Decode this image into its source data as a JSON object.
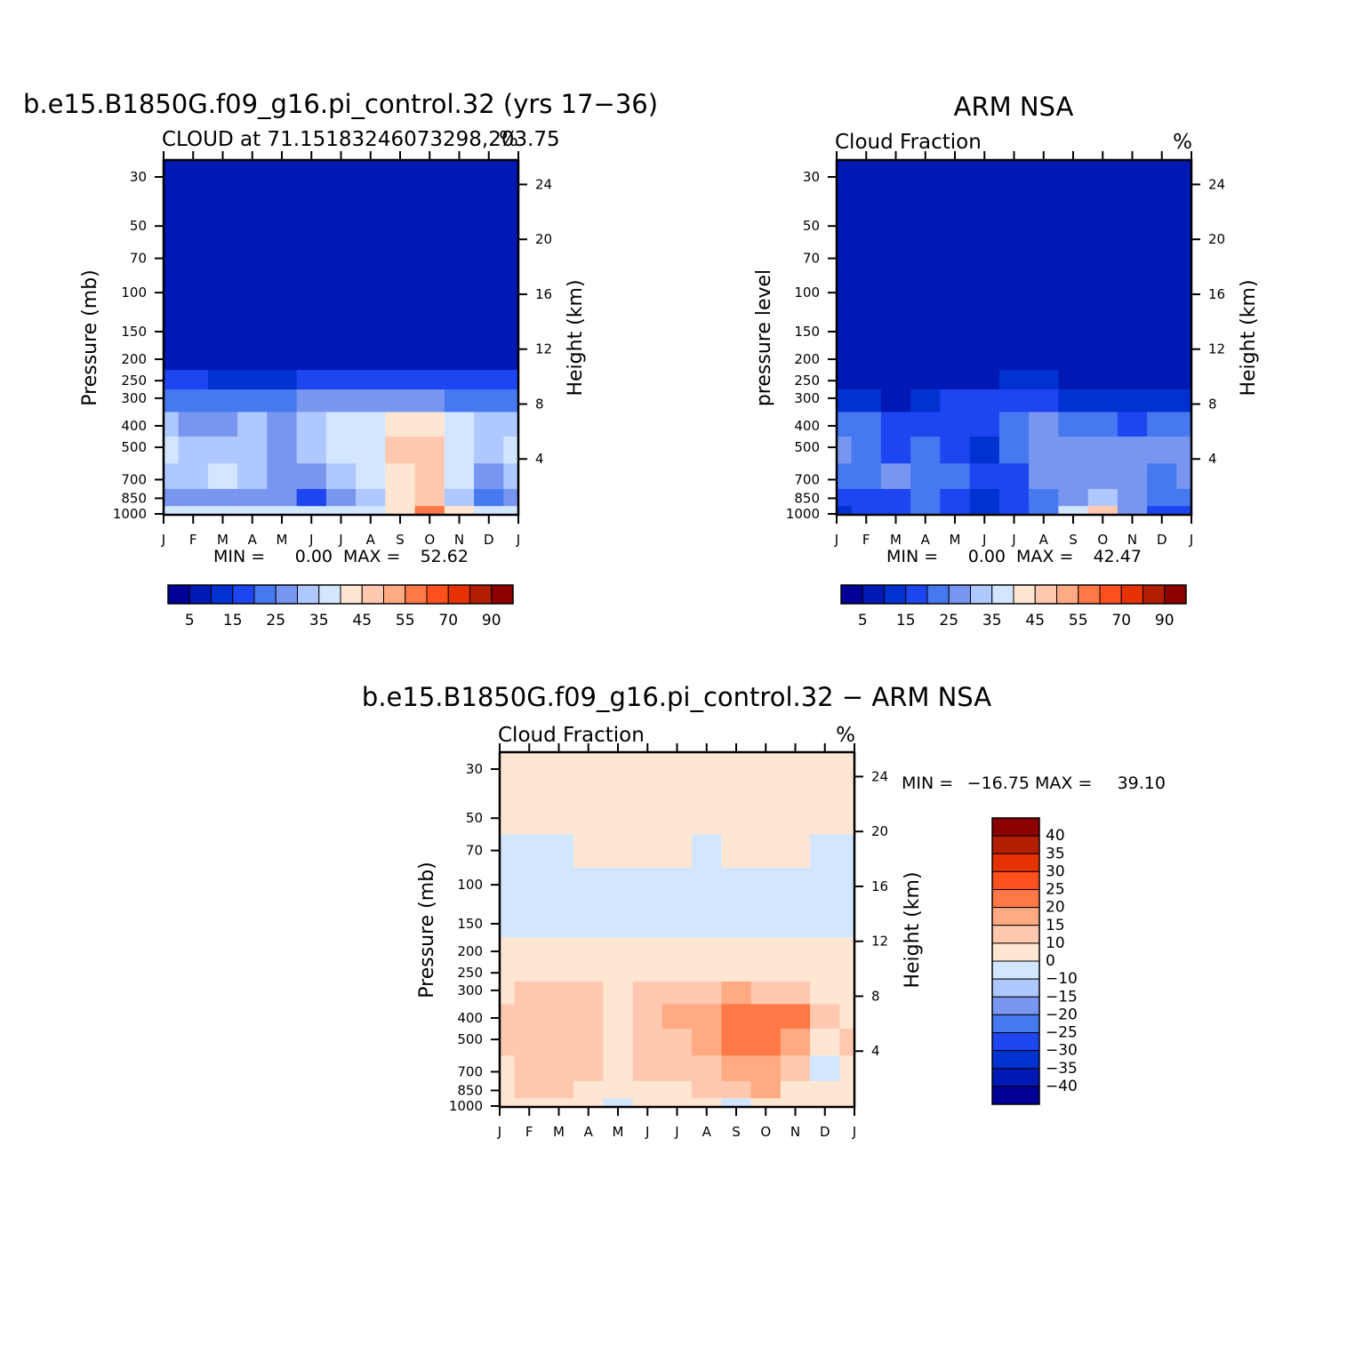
{
  "colors": {
    "cloud_scale": [
      "#000096",
      "#0019b4",
      "#0032d2",
      "#1e46f0",
      "#4678f0",
      "#7896f0",
      "#afc8ff",
      "#d2e6ff",
      "#ffe6d2",
      "#ffc8af",
      "#ffaa82",
      "#ff7846",
      "#ff501e",
      "#e63200",
      "#b41e00",
      "#8c0000"
    ],
    "diff_scale": [
      "#000096",
      "#0019b4",
      "#0032d2",
      "#1e46f0",
      "#4678f0",
      "#7896f0",
      "#afc8ff",
      "#d2e6ff",
      "#ffe6d2",
      "#ffc8af",
      "#ffaa82",
      "#ff7846",
      "#ff501e",
      "#e63200",
      "#b41e00",
      "#8c0000"
    ]
  },
  "panels": {
    "model": {
      "title": "b.e15.B1850G.f09_g16.pi_control.32 (yrs 17−36)",
      "left_string": "CLOUD at 71.15183246073298,203.75",
      "right_string": "%",
      "y_label": "Pressure (mb)",
      "y2_label": "Height (km)",
      "min_label": "MIN =",
      "min_value": "0.00",
      "max_label": "MAX =",
      "max_value": "52.62"
    },
    "obs": {
      "title": "ARM NSA",
      "left_string": "Cloud Fraction",
      "right_string": "%",
      "y_label": "pressure level",
      "y2_label": "Height (km)",
      "min_label": "MIN =",
      "min_value": "0.00",
      "max_label": "MAX =",
      "max_value": "42.47"
    },
    "diff": {
      "title": "b.e15.B1850G.f09_g16.pi_control.32 − ARM NSA",
      "left_string": "Cloud Fraction",
      "right_string": "%",
      "y_label": "Pressure (mb)",
      "y2_label": "Height (km)",
      "min_label": "MIN =",
      "min_value": "−16.75",
      "max_label": "MAX =",
      "max_value": "39.10"
    }
  },
  "colorbars": {
    "cloud_labels": [
      "5",
      "15",
      "25",
      "35",
      "45",
      "55",
      "70",
      "90"
    ],
    "diff_labels": [
      "40",
      "35",
      "30",
      "25",
      "20",
      "15",
      "10",
      "0",
      "−10",
      "−15",
      "−20",
      "−25",
      "−30",
      "−35",
      "−40"
    ]
  },
  "chart_data": [
    {
      "type": "heatmap",
      "name": "model",
      "title": "b.e15.B1850G.f09_g16.pi_control.32 (yrs 17-36)",
      "x_categories": [
        "J",
        "F",
        "M",
        "A",
        "M",
        "J",
        "J",
        "A",
        "S",
        "O",
        "N",
        "D",
        "J"
      ],
      "y_ticks_pressure_mb": [
        "30",
        "50",
        "70",
        "100",
        "150",
        "200",
        "250",
        "300",
        "400",
        "500",
        "700",
        "850",
        "1000"
      ],
      "y2_ticks_height_km": [
        "24",
        "20",
        "16",
        "12",
        "8",
        "4"
      ],
      "pressure_levels": [
        30,
        50,
        70,
        100,
        150,
        200,
        250,
        300,
        400,
        500,
        700,
        850,
        1000
      ],
      "values": [
        [
          0,
          0,
          0,
          0,
          0,
          0,
          0,
          0,
          0,
          0,
          0,
          0,
          0
        ],
        [
          0,
          0,
          0,
          0,
          0,
          0,
          0,
          0,
          0,
          0,
          0,
          0,
          0
        ],
        [
          0,
          0,
          0,
          0,
          0,
          0,
          0,
          0,
          0,
          0,
          0,
          0,
          0
        ],
        [
          0,
          0,
          0,
          0,
          0,
          0,
          0,
          0,
          0,
          0,
          0,
          0,
          0
        ],
        [
          0,
          0,
          0,
          0,
          0,
          0,
          0,
          0,
          0,
          0,
          0,
          0,
          0
        ],
        [
          2,
          2,
          1,
          1,
          1,
          2,
          3,
          3,
          3,
          2,
          2,
          2,
          2
        ],
        [
          10,
          10,
          9,
          8,
          8,
          10,
          12,
          12,
          12,
          11,
          10,
          10,
          10
        ],
        [
          18,
          18,
          17,
          16,
          18,
          20,
          22,
          22,
          22,
          20,
          18,
          17,
          18
        ],
        [
          25,
          24,
          24,
          26,
          20,
          28,
          30,
          32,
          36,
          36,
          30,
          26,
          25
        ],
        [
          30,
          28,
          28,
          28,
          20,
          26,
          30,
          34,
          40,
          42,
          34,
          25,
          30
        ],
        [
          28,
          28,
          30,
          28,
          20,
          22,
          26,
          32,
          38,
          40,
          30,
          20,
          26
        ],
        [
          22,
          24,
          24,
          24,
          22,
          14,
          20,
          26,
          36,
          44,
          28,
          18,
          24
        ],
        [
          30,
          30,
          32,
          32,
          32,
          30,
          34,
          34,
          38,
          50,
          36,
          34,
          32
        ]
      ]
    },
    {
      "type": "heatmap",
      "name": "obs",
      "title": "ARM NSA",
      "x_categories": [
        "J",
        "F",
        "M",
        "A",
        "M",
        "J",
        "J",
        "A",
        "S",
        "O",
        "N",
        "D",
        "J"
      ],
      "y_ticks_pressure_mb": [
        "30",
        "50",
        "70",
        "100",
        "150",
        "200",
        "250",
        "300",
        "400",
        "500",
        "700",
        "850",
        "1000"
      ],
      "y2_ticks_height_km": [
        "24",
        "20",
        "16",
        "12",
        "8",
        "4"
      ],
      "pressure_levels": [
        30,
        50,
        70,
        100,
        150,
        200,
        250,
        300,
        400,
        500,
        700,
        850,
        1000
      ],
      "values": [
        [
          0,
          0,
          0,
          0,
          0,
          0,
          0,
          0,
          0,
          0,
          0,
          0,
          0
        ],
        [
          0,
          0,
          0,
          0,
          0,
          0,
          0,
          0,
          0,
          0,
          0,
          0,
          0
        ],
        [
          0,
          0,
          0,
          0,
          0,
          0,
          0,
          0,
          0,
          0,
          0,
          0,
          0
        ],
        [
          0,
          0,
          0,
          0,
          0,
          0,
          0,
          0,
          0,
          0,
          0,
          0,
          0
        ],
        [
          0,
          0,
          0,
          0,
          0,
          0,
          0,
          0,
          0,
          0,
          0,
          0,
          0
        ],
        [
          0,
          0,
          0,
          0,
          0,
          0,
          0,
          0,
          0,
          0,
          0,
          0,
          0
        ],
        [
          1,
          1,
          1,
          2,
          3,
          4,
          6,
          7,
          3,
          2,
          1,
          1,
          1
        ],
        [
          8,
          6,
          4,
          6,
          10,
          12,
          14,
          14,
          9,
          8,
          8,
          8,
          8
        ],
        [
          18,
          16,
          12,
          14,
          14,
          10,
          18,
          22,
          18,
          16,
          14,
          16,
          18
        ],
        [
          20,
          16,
          14,
          18,
          14,
          8,
          16,
          22,
          20,
          22,
          20,
          22,
          22
        ],
        [
          18,
          16,
          20,
          18,
          16,
          10,
          14,
          20,
          20,
          24,
          22,
          18,
          20
        ],
        [
          14,
          12,
          14,
          16,
          14,
          8,
          12,
          16,
          20,
          26,
          20,
          16,
          16
        ],
        [
          8,
          10,
          12,
          18,
          14,
          8,
          12,
          16,
          30,
          42,
          24,
          14,
          12
        ]
      ]
    },
    {
      "type": "heatmap",
      "name": "diff",
      "title": "b.e15.B1850G.f09_g16.pi_control.32 - ARM NSA",
      "x_categories": [
        "J",
        "F",
        "M",
        "A",
        "M",
        "J",
        "J",
        "A",
        "S",
        "O",
        "N",
        "D",
        "J"
      ],
      "y_ticks_pressure_mb": [
        "30",
        "50",
        "70",
        "100",
        "150",
        "200",
        "250",
        "300",
        "400",
        "500",
        "700",
        "850",
        "1000"
      ],
      "y2_ticks_height_km": [
        "24",
        "20",
        "16",
        "12",
        "8",
        "4"
      ],
      "pressure_levels": [
        30,
        50,
        70,
        100,
        150,
        200,
        250,
        300,
        400,
        500,
        700,
        850,
        1000
      ],
      "values": [
        [
          0,
          0,
          0,
          0,
          0,
          0,
          0,
          0,
          0,
          0,
          0,
          0,
          0
        ],
        [
          0,
          0,
          0,
          0,
          0,
          0,
          0,
          0,
          0,
          0,
          0,
          0,
          0
        ],
        [
          -1,
          -1,
          -1,
          0,
          0,
          0,
          0,
          -1,
          0,
          0,
          0,
          -1,
          -1
        ],
        [
          -1,
          -1,
          -1,
          -1,
          -1,
          -1,
          -1,
          -1,
          -1,
          -1,
          -1,
          -1,
          -1
        ],
        [
          -1,
          -1,
          -1,
          -1,
          -1,
          -1,
          -1,
          -1,
          -1,
          -1,
          -1,
          -1,
          -1
        ],
        [
          2,
          2,
          1,
          1,
          1,
          2,
          3,
          3,
          3,
          2,
          2,
          2,
          2
        ],
        [
          6,
          6,
          5,
          4,
          5,
          6,
          6,
          6,
          8,
          8,
          6,
          6,
          6
        ],
        [
          8,
          10,
          12,
          10,
          8,
          10,
          10,
          14,
          16,
          14,
          10,
          8,
          8
        ],
        [
          10,
          12,
          12,
          12,
          8,
          14,
          16,
          18,
          24,
          24,
          20,
          10,
          8
        ],
        [
          10,
          12,
          14,
          10,
          6,
          12,
          14,
          16,
          22,
          22,
          18,
          6,
          10
        ],
        [
          8,
          12,
          14,
          10,
          4,
          10,
          12,
          12,
          18,
          18,
          10,
          -2,
          8
        ],
        [
          8,
          10,
          12,
          8,
          6,
          6,
          8,
          10,
          14,
          16,
          8,
          4,
          8
        ],
        [
          4,
          4,
          6,
          2,
          -4,
          2,
          2,
          0,
          -2,
          0,
          2,
          4,
          4
        ]
      ]
    }
  ]
}
